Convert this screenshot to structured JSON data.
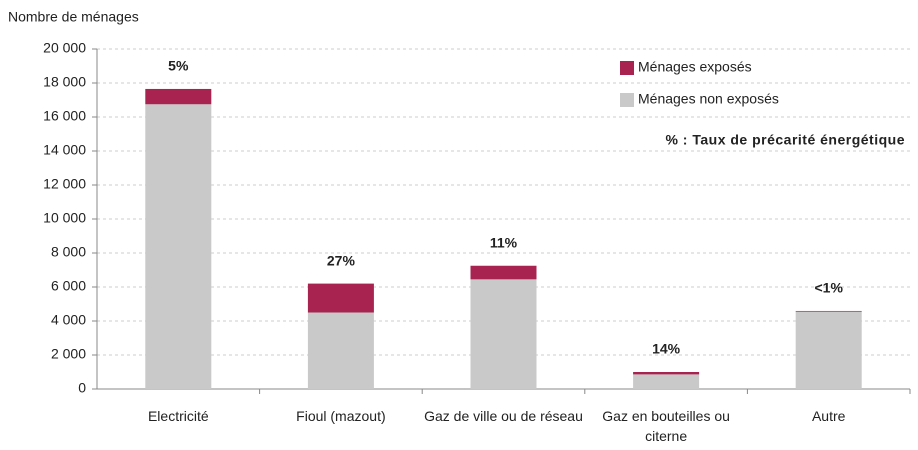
{
  "chart_data": {
    "type": "stacked_bar",
    "y_label": "Nombre de ménages",
    "categories": [
      "Electricité",
      "Fioul (mazout)",
      "Gaz de ville ou de réseau",
      "Gaz en bouteilles ou citerne",
      "Autre"
    ],
    "series": [
      {
        "name": "Ménages non exposés",
        "color": "#c9c9c9",
        "values": [
          16750,
          4500,
          6450,
          860,
          4550
        ]
      },
      {
        "name": "Ménages exposés",
        "color": "#a8234f",
        "values": [
          900,
          1700,
          800,
          140,
          40
        ]
      }
    ],
    "annotations": [
      "5%",
      "27%",
      "11%",
      "14%",
      "<1%"
    ],
    "note": "% : Taux de précarité énergétique",
    "ylim": [
      0,
      20000
    ],
    "yticks": [
      0,
      {
        "value": 2000,
        "label": "2 000"
      },
      {
        "value": 4000,
        "label": "4 000"
      },
      {
        "value": 6000,
        "label": "6 000"
      },
      {
        "value": 8000,
        "label": "8 000"
      },
      {
        "value": 10000,
        "label": "10 000"
      },
      {
        "value": 12000,
        "label": "12 000"
      },
      {
        "value": 14000,
        "label": "14 000"
      },
      {
        "value": 16000,
        "label": "16 000"
      },
      {
        "value": 18000,
        "label": "18 000"
      },
      {
        "value": 20000,
        "label": "20 000"
      }
    ],
    "grid": true
  }
}
